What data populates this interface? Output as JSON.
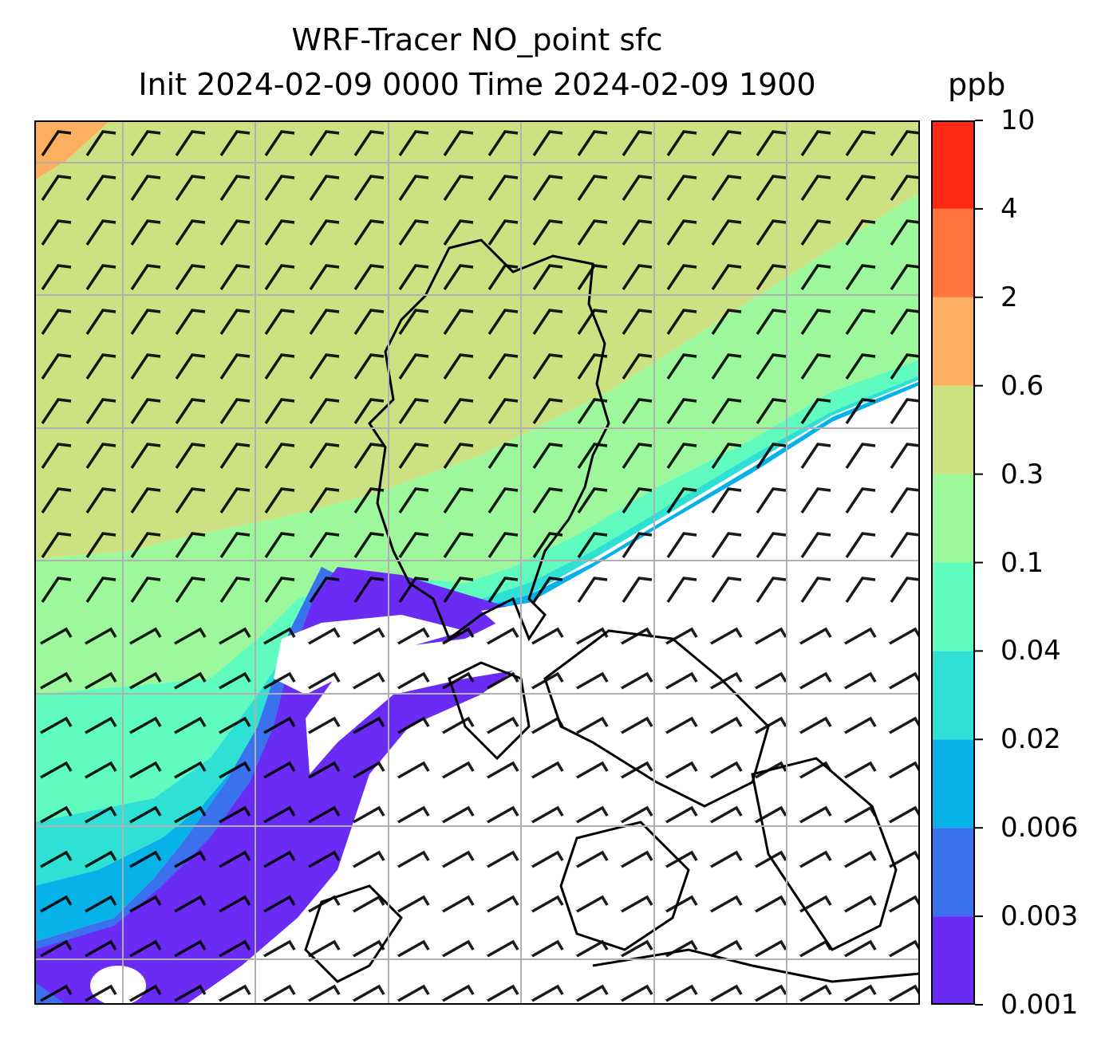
{
  "title_line1": "WRF-Tracer NO_point sfc",
  "title_line2": "Init 2024-02-09 0000 Time 2024-02-09 1900",
  "units": "ppb",
  "colorbar": {
    "levels": [
      "0.001",
      "0.003",
      "0.006",
      "0.02",
      "0.04",
      "0.1",
      "0.3",
      "0.6",
      "2",
      "4",
      "10"
    ],
    "colors": [
      "#6a2cf5",
      "#3a72ee",
      "#06b2e8",
      "#2ee1d4",
      "#5ffbbf",
      "#9cf89a",
      "#cde182",
      "#fdae5f",
      "#ff733c",
      "#ff2a16"
    ]
  },
  "map": {
    "background": "#ffffff",
    "gridline_color": "#b0b0b0",
    "wind_barbs": "present",
    "coastlines": "present"
  }
}
